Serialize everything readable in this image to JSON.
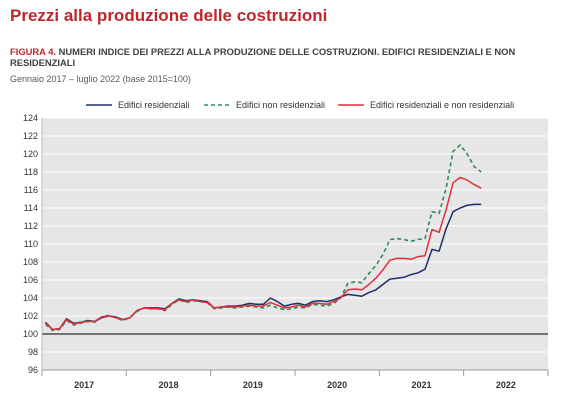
{
  "page": {
    "title": "Prezzi alla produzione delle costruzioni"
  },
  "figure": {
    "label": "FIGURA 4.",
    "title": "NUMERI INDICE DEI PREZZI ALLA PRODUZIONE DELLE COSTRUZIONI. EDIFICI RESIDENZIALI E NON RESIDENZIALI",
    "subtitle": "Gennaio 2017 – luglio 2022 (base 2015=100)"
  },
  "colors": {
    "residenziali": "#1f2f6b",
    "non_residenziali": "#2e8b57",
    "totale": "#e0303a",
    "plot_bg": "#e6e6e6",
    "title_red": "#c0272d"
  },
  "chart_data": {
    "type": "line",
    "x_start": "2017-01",
    "x_end": "2022-07",
    "frequency": "monthly",
    "x_tick_labels": [
      "2017",
      "2018",
      "2019",
      "2020",
      "2021",
      "2022"
    ],
    "ylim": [
      96,
      124
    ],
    "y_ticks": [
      96,
      98,
      100,
      102,
      104,
      106,
      108,
      110,
      112,
      114,
      116,
      118,
      120,
      122,
      124
    ],
    "reference_line": 100,
    "legend_position": "top",
    "series": [
      {
        "name": "Edifici residenziali",
        "style": "solid",
        "color": "#1f2f6b",
        "values": [
          101.3,
          100.5,
          100.6,
          101.7,
          101.2,
          101.3,
          101.5,
          101.4,
          101.8,
          102.0,
          101.9,
          101.6,
          101.8,
          102.6,
          102.9,
          102.9,
          102.9,
          102.8,
          103.4,
          103.9,
          103.7,
          103.8,
          103.7,
          103.6,
          102.9,
          103.0,
          103.1,
          103.1,
          103.2,
          103.4,
          103.3,
          103.3,
          104.0,
          103.6,
          103.1,
          103.3,
          103.4,
          103.2,
          103.6,
          103.7,
          103.6,
          103.8,
          104.1,
          104.4,
          104.3,
          104.2,
          104.6,
          104.9,
          105.5,
          106.1,
          106.2,
          106.3,
          106.6,
          106.8,
          107.2,
          109.4,
          109.2,
          111.7,
          113.6,
          114.0,
          114.3,
          114.4,
          114.4
        ]
      },
      {
        "name": "Edifici non residenziali",
        "style": "dashed",
        "color": "#2e8b57",
        "values": [
          101.1,
          100.4,
          100.5,
          101.5,
          101.0,
          101.2,
          101.4,
          101.3,
          101.9,
          102.1,
          101.8,
          101.5,
          101.8,
          102.5,
          102.9,
          102.8,
          102.8,
          102.6,
          103.3,
          103.8,
          103.5,
          103.7,
          103.6,
          103.5,
          102.8,
          102.9,
          103.0,
          102.9,
          103.0,
          103.1,
          103.0,
          102.9,
          103.2,
          102.9,
          102.7,
          102.8,
          103.0,
          102.9,
          103.3,
          103.2,
          103.1,
          103.4,
          104.0,
          105.6,
          105.8,
          105.7,
          106.7,
          107.6,
          108.8,
          110.5,
          110.6,
          110.5,
          110.3,
          110.5,
          110.6,
          113.6,
          113.4,
          116.2,
          120.3,
          121.0,
          120.0,
          118.6,
          118.0
        ]
      },
      {
        "name": "Edifici residenziali e non residenziali",
        "style": "solid",
        "color": "#e0303a",
        "values": [
          101.2,
          100.5,
          100.6,
          101.6,
          101.1,
          101.3,
          101.4,
          101.4,
          101.9,
          102.0,
          101.8,
          101.6,
          101.8,
          102.6,
          102.9,
          102.8,
          102.8,
          102.7,
          103.4,
          103.8,
          103.6,
          103.8,
          103.6,
          103.5,
          102.9,
          103.0,
          103.0,
          103.0,
          103.1,
          103.2,
          103.1,
          103.1,
          103.5,
          103.2,
          102.9,
          103.0,
          103.2,
          103.0,
          103.4,
          103.4,
          103.3,
          103.6,
          104.0,
          104.9,
          105.0,
          104.9,
          105.5,
          106.2,
          107.1,
          108.2,
          108.4,
          108.4,
          108.3,
          108.6,
          108.7,
          111.6,
          111.3,
          113.8,
          116.8,
          117.4,
          117.1,
          116.6,
          116.2
        ]
      }
    ]
  }
}
